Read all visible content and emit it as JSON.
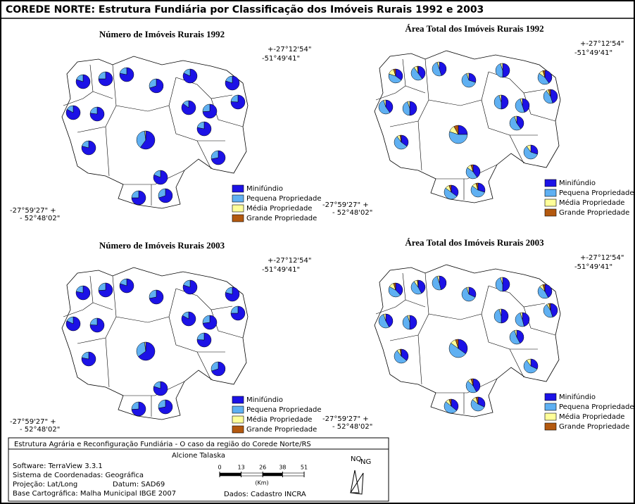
{
  "header": {
    "title": "COREDE NORTE: Estrutura Fundiária por Classificação dos Imóveis Rurais 1992 e 2003"
  },
  "legend": [
    {
      "label": "Minifúndio",
      "color": "#1c12e6"
    },
    {
      "label": "Pequena Propriedade",
      "color": "#5fb0f2"
    },
    {
      "label": "Média Propriedade",
      "color": "#ffff99"
    },
    {
      "label": "Grande Propriedade",
      "color": "#b3590f"
    }
  ],
  "maps": [
    {
      "title": "Número de Imóveis Rurais 1992",
      "coord_ne": [
        "+-27°12'54\"",
        "-51°49'41\""
      ],
      "coord_sw": [
        "-27°59'27\" +",
        "- 52°48'02\""
      ],
      "pies": [
        [
          80,
          20,
          0,
          0
        ],
        [
          75,
          25,
          0,
          0
        ],
        [
          78,
          22,
          0,
          0
        ],
        [
          70,
          30,
          0,
          0
        ],
        [
          82,
          18,
          0,
          0
        ],
        [
          80,
          20,
          0,
          0
        ],
        [
          76,
          24,
          0,
          0
        ],
        [
          85,
          15,
          0,
          0
        ],
        [
          74,
          26,
          0,
          0
        ],
        [
          78,
          22,
          0,
          0
        ],
        [
          83,
          17,
          0,
          0
        ],
        [
          77,
          23,
          0,
          0
        ],
        [
          60,
          38,
          2,
          0
        ],
        [
          79,
          21,
          0,
          0
        ],
        [
          72,
          28,
          0,
          0
        ],
        [
          81,
          19,
          0,
          0
        ],
        [
          75,
          25,
          0,
          0
        ],
        [
          70,
          30,
          0,
          0
        ]
      ]
    },
    {
      "title": "Área Total dos Imóveis Rurais 1992",
      "coord_ne": [
        "+-27°12'54\"",
        "-51°49'41\""
      ],
      "coord_sw": [
        "-27°59'27\" +",
        "- 52°48'02\""
      ],
      "pies": [
        [
          35,
          45,
          15,
          5
        ],
        [
          40,
          50,
          8,
          2
        ],
        [
          45,
          50,
          5,
          0
        ],
        [
          30,
          65,
          5,
          0
        ],
        [
          50,
          45,
          5,
          0
        ],
        [
          40,
          45,
          10,
          5
        ],
        [
          45,
          45,
          5,
          5
        ],
        [
          50,
          45,
          5,
          0
        ],
        [
          45,
          50,
          5,
          0
        ],
        [
          40,
          55,
          5,
          0
        ],
        [
          40,
          55,
          5,
          0
        ],
        [
          50,
          45,
          5,
          0
        ],
        [
          25,
          55,
          12,
          8
        ],
        [
          35,
          55,
          7,
          3
        ],
        [
          30,
          60,
          10,
          0
        ],
        [
          40,
          45,
          10,
          5
        ],
        [
          35,
          50,
          10,
          5
        ],
        [
          30,
          55,
          10,
          5
        ]
      ]
    },
    {
      "title": "Número de Imóveis Rurais 2003",
      "coord_ne": [
        "+-27°12'54\"",
        "-51°49'41\""
      ],
      "coord_sw": [
        "-27°59'27\" +",
        "- 52°48'02\""
      ],
      "pies": [
        [
          78,
          22,
          0,
          0
        ],
        [
          74,
          26,
          0,
          0
        ],
        [
          80,
          20,
          0,
          0
        ],
        [
          72,
          28,
          0,
          0
        ],
        [
          80,
          20,
          0,
          0
        ],
        [
          79,
          21,
          0,
          0
        ],
        [
          75,
          25,
          0,
          0
        ],
        [
          83,
          17,
          0,
          0
        ],
        [
          73,
          27,
          0,
          0
        ],
        [
          76,
          24,
          0,
          0
        ],
        [
          82,
          18,
          0,
          0
        ],
        [
          76,
          24,
          0,
          0
        ],
        [
          65,
          33,
          2,
          0
        ],
        [
          78,
          22,
          0,
          0
        ],
        [
          70,
          30,
          0,
          0
        ],
        [
          80,
          20,
          0,
          0
        ],
        [
          74,
          26,
          0,
          0
        ],
        [
          72,
          28,
          0,
          0
        ]
      ]
    },
    {
      "title": "Área Total dos Imóveis Rurais 2003",
      "coord_ne": [
        "+-27°12'54\"",
        "-51°49'41\""
      ],
      "coord_sw": [
        "-27°59'27\" +",
        "- 52°48'02\""
      ],
      "pies": [
        [
          38,
          45,
          12,
          5
        ],
        [
          42,
          48,
          8,
          2
        ],
        [
          46,
          49,
          5,
          0
        ],
        [
          32,
          63,
          5,
          0
        ],
        [
          50,
          45,
          5,
          0
        ],
        [
          42,
          45,
          8,
          5
        ],
        [
          45,
          46,
          5,
          4
        ],
        [
          50,
          45,
          5,
          0
        ],
        [
          46,
          49,
          5,
          0
        ],
        [
          42,
          53,
          5,
          0
        ],
        [
          42,
          53,
          5,
          0
        ],
        [
          50,
          45,
          5,
          0
        ],
        [
          35,
          50,
          10,
          5
        ],
        [
          36,
          54,
          7,
          3
        ],
        [
          32,
          58,
          10,
          0
        ],
        [
          42,
          45,
          8,
          5
        ],
        [
          36,
          50,
          9,
          5
        ],
        [
          32,
          54,
          9,
          5
        ]
      ]
    }
  ],
  "footer": {
    "project": "Estrutura Agrária e Reconfiguração Fundiária - O caso da região do Corede Norte/RS",
    "author": "Alcione Talaska",
    "lines": [
      "Software: TerraView 3.3.1",
      "Sistema de Coordenadas: Geográfica",
      "Projeção: Lat/Long",
      "Base Cartográfica: Malha Municipal IBGE 2007"
    ],
    "datum": "Datum: SAD69",
    "source": "Dados: Cadastro INCRA"
  },
  "scale_bar": {
    "ticks": [
      0,
      13,
      26,
      38,
      51
    ],
    "unit": "(Km)"
  },
  "north": [
    "NQ",
    "NG"
  ]
}
